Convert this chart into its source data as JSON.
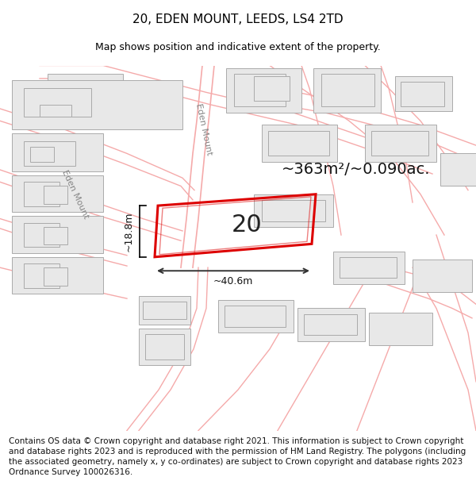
{
  "title": "20, EDEN MOUNT, LEEDS, LS4 2TD",
  "subtitle": "Map shows position and indicative extent of the property.",
  "footer": "Contains OS data © Crown copyright and database right 2021. This information is subject to Crown copyright and database rights 2023 and is reproduced with the permission of HM Land Registry. The polygons (including the associated geometry, namely x, y co-ordinates) are subject to Crown copyright and database rights 2023 Ordnance Survey 100026316.",
  "area_text": "~363m²/~0.090ac.",
  "dim_h": "~18.8m",
  "dim_w": "~40.6m",
  "property_label": "20",
  "street_label": "Eden Mount",
  "street_label2": "Eden Mount",
  "bg_color": "#ffffff",
  "building_fill": "#e8e8e8",
  "building_edge": "#aaaaaa",
  "road_color": "#f5aaaa",
  "highlight_color": "#dd0000",
  "title_fontsize": 11,
  "subtitle_fontsize": 9,
  "footer_fontsize": 7.5,
  "annot_fontsize": 14,
  "label_fontsize": 22
}
